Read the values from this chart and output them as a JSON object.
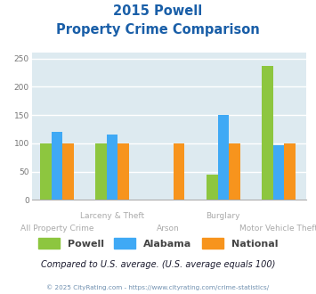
{
  "title_line1": "2015 Powell",
  "title_line2": "Property Crime Comparison",
  "categories": [
    "All Property Crime",
    "Larceny & Theft",
    "Arson",
    "Burglary",
    "Motor Vehicle Theft"
  ],
  "series": {
    "Powell": [
      100,
      100,
      null,
      44,
      237
    ],
    "Alabama": [
      121,
      115,
      null,
      150,
      97
    ],
    "National": [
      100,
      100,
      100,
      100,
      100
    ]
  },
  "colors": {
    "Powell": "#8dc63f",
    "Alabama": "#3fa9f5",
    "National": "#f7941d"
  },
  "ylim": [
    0,
    260
  ],
  "yticks": [
    0,
    50,
    100,
    150,
    200,
    250
  ],
  "background_color": "#ddeaf0",
  "grid_color": "#ffffff",
  "title_color": "#1a5fa8",
  "xlabel_color_upper": "#aaaaaa",
  "xlabel_color_lower": "#aaaaaa",
  "footer_note": "Compared to U.S. average. (U.S. average equals 100)",
  "footer_note_color": "#1a1a2e",
  "copyright_text": "© 2025 CityRating.com - https://www.cityrating.com/crime-statistics/",
  "copyright_color": "#7090b0",
  "bar_width": 0.22,
  "group_positions": [
    0.6,
    1.7,
    2.8,
    3.9,
    5.0
  ],
  "cat_labels_upper": [
    "",
    "Larceny & Theft",
    "",
    "Burglary",
    ""
  ],
  "cat_labels_lower": [
    "All Property Crime",
    "",
    "Arson",
    "",
    "Motor Vehicle Theft"
  ]
}
